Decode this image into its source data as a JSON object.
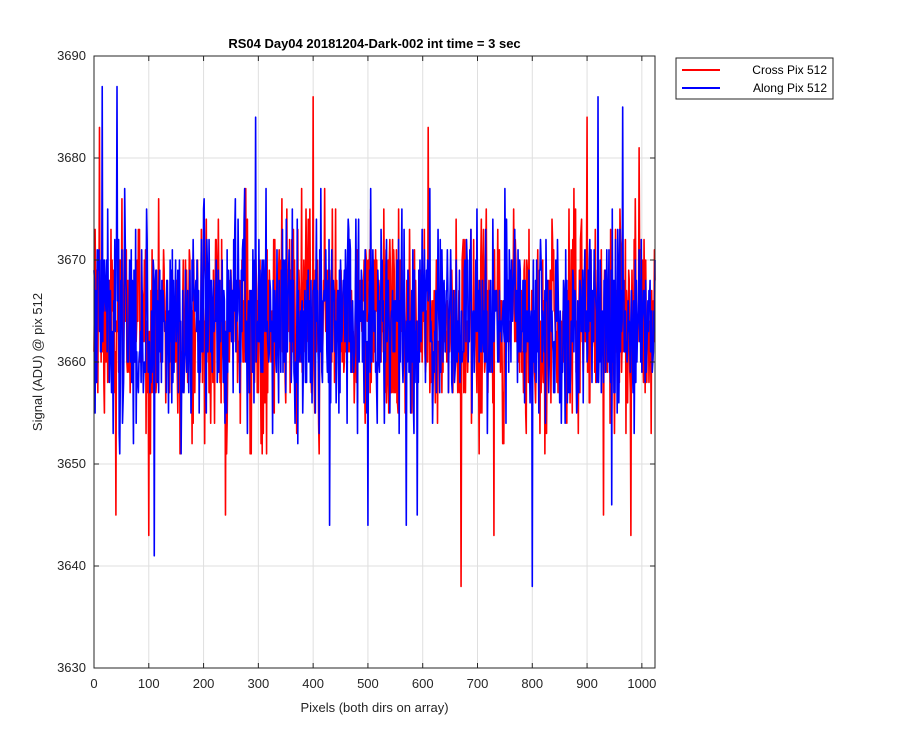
{
  "chart_data": {
    "type": "line",
    "title": "RS04 Day04 20181204-Dark-002 int time = 3 sec",
    "xlabel": "Pixels (both dirs on array)",
    "ylabel": "Signal (ADU) @ pix 512",
    "xlim": [
      0,
      1024
    ],
    "ylim": [
      3630,
      3690
    ],
    "xticks": [
      0,
      100,
      200,
      300,
      400,
      500,
      600,
      700,
      800,
      900,
      1000
    ],
    "yticks": [
      3630,
      3640,
      3650,
      3660,
      3670,
      3680,
      3690
    ],
    "grid": true,
    "legend": "outside top-right",
    "noise_sd": 5,
    "series": [
      {
        "name": "Cross Pix 512",
        "color": "#ff0000",
        "mean": 3664,
        "extremes": [
          {
            "x": 100,
            "y": 3643
          },
          {
            "x": 400,
            "y": 3686
          },
          {
            "x": 670,
            "y": 3638
          },
          {
            "x": 900,
            "y": 3684
          },
          {
            "x": 980,
            "y": 3643
          },
          {
            "x": 10,
            "y": 3683
          },
          {
            "x": 40,
            "y": 3645
          },
          {
            "x": 240,
            "y": 3645
          },
          {
            "x": 730,
            "y": 3643
          },
          {
            "x": 930,
            "y": 3645
          },
          {
            "x": 610,
            "y": 3683
          },
          {
            "x": 995,
            "y": 3681
          }
        ]
      },
      {
        "name": "Along Pix 512",
        "color": "#0000ff",
        "mean": 3664,
        "extremes": [
          {
            "x": 15,
            "y": 3687
          },
          {
            "x": 42,
            "y": 3687
          },
          {
            "x": 110,
            "y": 3641
          },
          {
            "x": 295,
            "y": 3684
          },
          {
            "x": 800,
            "y": 3638
          },
          {
            "x": 920,
            "y": 3686
          },
          {
            "x": 965,
            "y": 3685
          },
          {
            "x": 430,
            "y": 3644
          },
          {
            "x": 500,
            "y": 3644
          },
          {
            "x": 570,
            "y": 3644
          },
          {
            "x": 590,
            "y": 3645
          },
          {
            "x": 945,
            "y": 3646
          }
        ]
      }
    ]
  }
}
